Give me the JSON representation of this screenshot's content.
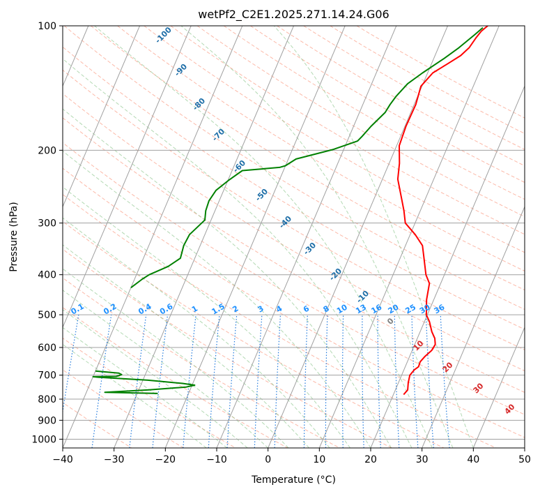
{
  "chart_data": {
    "type": "line",
    "title": "wetPf2_C2E1.2025.271.14.24.G06",
    "xlabel": "Temperature (°C)",
    "ylabel": "Pressure (hPa)",
    "xlim": [
      -40,
      50
    ],
    "ylim": [
      1050,
      100
    ],
    "y_scale": "log",
    "x_ticks": [
      -40,
      -30,
      -20,
      -10,
      0,
      10,
      20,
      30,
      40,
      50
    ],
    "y_ticks": [
      100,
      200,
      300,
      400,
      500,
      600,
      700,
      800,
      900,
      1000
    ],
    "x_tick_labels": [
      "−40",
      "−30",
      "−20",
      "−10",
      "0",
      "10",
      "20",
      "30",
      "40",
      "50"
    ],
    "y_tick_labels": [
      "100",
      "200",
      "300",
      "400",
      "500",
      "600",
      "700",
      "800",
      "900",
      "1000"
    ],
    "grid": true,
    "colors": {
      "temperature": "#ff0000",
      "dewpoint": "#008000",
      "isotherm": "#a0a0a0",
      "dry_adiabat": "#fa8060",
      "moist_adiabat": "#80c080",
      "mixing_ratio": "#1e78dc",
      "iso_label_dark": "#1f6fa8",
      "iso_label_light": "#1e90ff",
      "dry_label": "#d62728",
      "zero_label": "#808080"
    },
    "series": [
      {
        "name": "temperature",
        "points": [
          [
            22.0,
            780
          ],
          [
            22.4,
            760
          ],
          [
            21.9,
            730
          ],
          [
            21.6,
            700
          ],
          [
            22.0,
            680
          ],
          [
            22.6,
            668
          ],
          [
            22.5,
            650
          ],
          [
            23.0,
            630
          ],
          [
            23.8,
            610
          ],
          [
            24.0,
            590
          ],
          [
            23.4,
            570
          ],
          [
            22.3,
            550
          ],
          [
            21.0,
            520
          ],
          [
            19.8,
            500
          ],
          [
            18.6,
            460
          ],
          [
            17.8,
            420
          ],
          [
            16.4,
            400
          ],
          [
            14.4,
            360
          ],
          [
            13.3,
            340
          ],
          [
            11.0,
            320
          ],
          [
            8.1,
            300
          ],
          [
            6.8,
            280
          ],
          [
            5.2,
            260
          ],
          [
            3.0,
            235
          ],
          [
            2.0,
            215
          ],
          [
            0.5,
            195
          ],
          [
            0.2,
            175
          ],
          [
            0.3,
            155
          ],
          [
            -0.2,
            140
          ],
          [
            1.0,
            130
          ],
          [
            3.0,
            124
          ],
          [
            5.0,
            118
          ],
          [
            6.0,
            113
          ],
          [
            6.5,
            107
          ],
          [
            7.0,
            103
          ],
          [
            7.8,
            100
          ]
        ]
      },
      {
        "name": "dewpoint",
        "points": [
          [
            -26.0,
            775
          ],
          [
            -30.0,
            773
          ],
          [
            -36.4,
            770
          ],
          [
            -28.0,
            760
          ],
          [
            -21.0,
            748
          ],
          [
            -19.5,
            740
          ],
          [
            -22.0,
            733
          ],
          [
            -29.0,
            720
          ],
          [
            -39.0,
            708
          ],
          [
            -40.0,
            706
          ],
          [
            -35.5,
            705
          ],
          [
            -34.6,
            698
          ],
          [
            -35.3,
            692
          ],
          [
            -40.0,
            684
          ]
        ]
      },
      {
        "name": "dewpoint_upper",
        "points": [
          [
            -40.0,
            430
          ],
          [
            -38.5,
            410
          ],
          [
            -37.5,
            400
          ],
          [
            -34.5,
            382
          ],
          [
            -32.8,
            365
          ],
          [
            -33.2,
            340
          ],
          [
            -33.0,
            320
          ],
          [
            -31.2,
            295
          ],
          [
            -31.8,
            280
          ],
          [
            -32.0,
            265
          ],
          [
            -31.5,
            250
          ],
          [
            -29.8,
            236
          ],
          [
            -28.0,
            224
          ],
          [
            -24.5,
            222
          ],
          [
            -21.0,
            220
          ],
          [
            -20.0,
            218
          ],
          [
            -18.5,
            210
          ],
          [
            -12.0,
            199
          ],
          [
            -8.0,
            190
          ],
          [
            -7.5,
            185
          ],
          [
            -6.6,
            175
          ],
          [
            -5.0,
            162
          ],
          [
            -4.7,
            155
          ],
          [
            -4.2,
            148
          ],
          [
            -3.0,
            138
          ],
          [
            -1.0,
            130
          ],
          [
            2.0,
            120
          ],
          [
            4.0,
            113
          ],
          [
            6.0,
            105
          ],
          [
            7.0,
            101
          ]
        ]
      }
    ],
    "isotherm_labels": [
      "-100",
      "-90",
      "-80",
      "-70",
      "-60",
      "-50",
      "-40",
      "-30",
      "-20",
      "-10",
      "0",
      "10",
      "20",
      "30",
      "40"
    ],
    "isotherm_label_values": [
      -100,
      -90,
      -80,
      -70,
      -60,
      -50,
      -40,
      -30,
      -20,
      -10,
      0,
      10,
      20,
      30,
      40
    ],
    "mixing_ratio_labels": [
      "0.1",
      "0.2",
      "0.4",
      "0.6",
      "1",
      "1.5",
      "2",
      "3",
      "4",
      "6",
      "8",
      "10",
      "13",
      "16",
      "20",
      "25",
      "30",
      "36"
    ],
    "mixing_ratio_values": [
      0.1,
      0.2,
      0.4,
      0.6,
      1,
      1.5,
      2,
      3,
      4,
      6,
      8,
      10,
      13,
      16,
      20,
      25,
      30,
      36
    ]
  }
}
